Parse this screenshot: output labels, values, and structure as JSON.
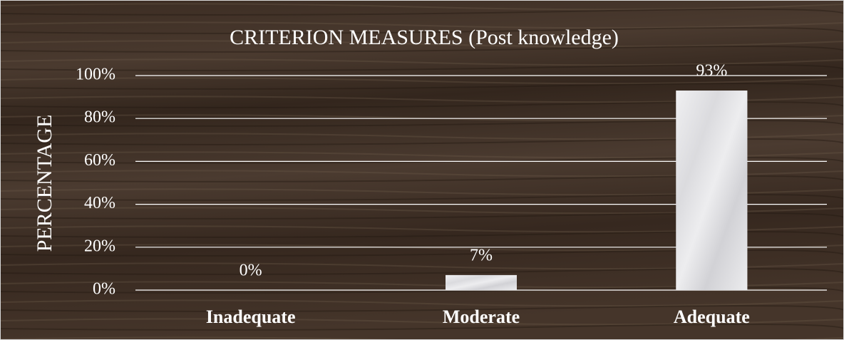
{
  "chart_data": {
    "type": "bar",
    "title": "CRITERION MEASURES (Post knowledge)",
    "y_label": "PERCENTAGE",
    "categories": [
      "Inadequate",
      "Moderate",
      "Adequate"
    ],
    "values": [
      0,
      7,
      93
    ],
    "value_labels": [
      "0%",
      "7%",
      "93%"
    ],
    "color": "#e6e6e8",
    "ylim": [
      0,
      100
    ],
    "yticks": [
      {
        "value": 0,
        "label": "0%"
      },
      {
        "value": 20,
        "label": "20%"
      },
      {
        "value": 40,
        "label": "40%"
      },
      {
        "value": 60,
        "label": "60%"
      },
      {
        "value": 80,
        "label": "80%"
      },
      {
        "value": 100,
        "label": "100%"
      }
    ],
    "grid": true
  }
}
